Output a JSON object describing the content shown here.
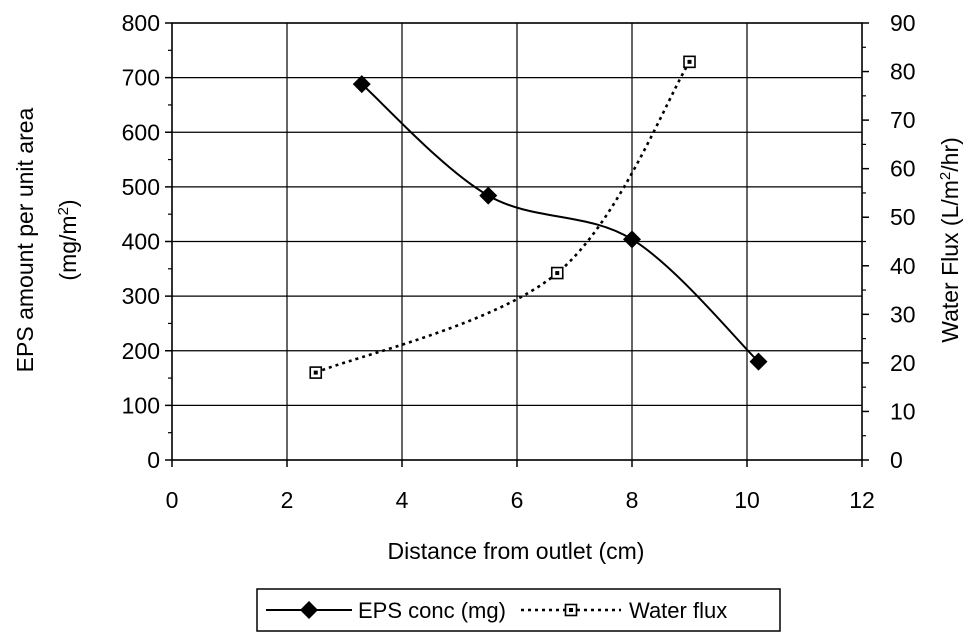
{
  "chart_data": {
    "type": "line",
    "xlabel": "Distance from outlet (cm)",
    "ylabel_line1": "EPS amount per unit area",
    "ylabel_line2_base": "(mg/m",
    "ylabel_line2_sup": "2",
    "ylabel_line2_end": ")",
    "y2label_base": "Water Flux (L/m",
    "y2label_sup": "2",
    "y2label_end": "/hr)",
    "xlim": [
      0,
      12
    ],
    "ylim": [
      0,
      800
    ],
    "y2lim": [
      0,
      90
    ],
    "xticks": [
      "0",
      "2",
      "4",
      "6",
      "8",
      "10",
      "12"
    ],
    "yticks": [
      "0",
      "100",
      "200",
      "300",
      "400",
      "500",
      "600",
      "700",
      "800"
    ],
    "y2ticks": [
      "0",
      "10",
      "20",
      "30",
      "40",
      "50",
      "60",
      "70",
      "80",
      "90"
    ],
    "grid": true,
    "legend_position": "bottom-center",
    "series": [
      {
        "name": "EPS conc (mg)",
        "axis": "left",
        "style": "solid",
        "marker": "diamond",
        "color": "#000000",
        "x": [
          3.3,
          5.5,
          8.0,
          10.2
        ],
        "y": [
          688,
          484,
          404,
          180
        ]
      },
      {
        "name": "Water flux",
        "axis": "right",
        "style": "dotted",
        "marker": "square-open",
        "color": "#000000",
        "x": [
          2.5,
          6.7,
          9.0
        ],
        "y": [
          18,
          38.5,
          82
        ]
      }
    ]
  }
}
